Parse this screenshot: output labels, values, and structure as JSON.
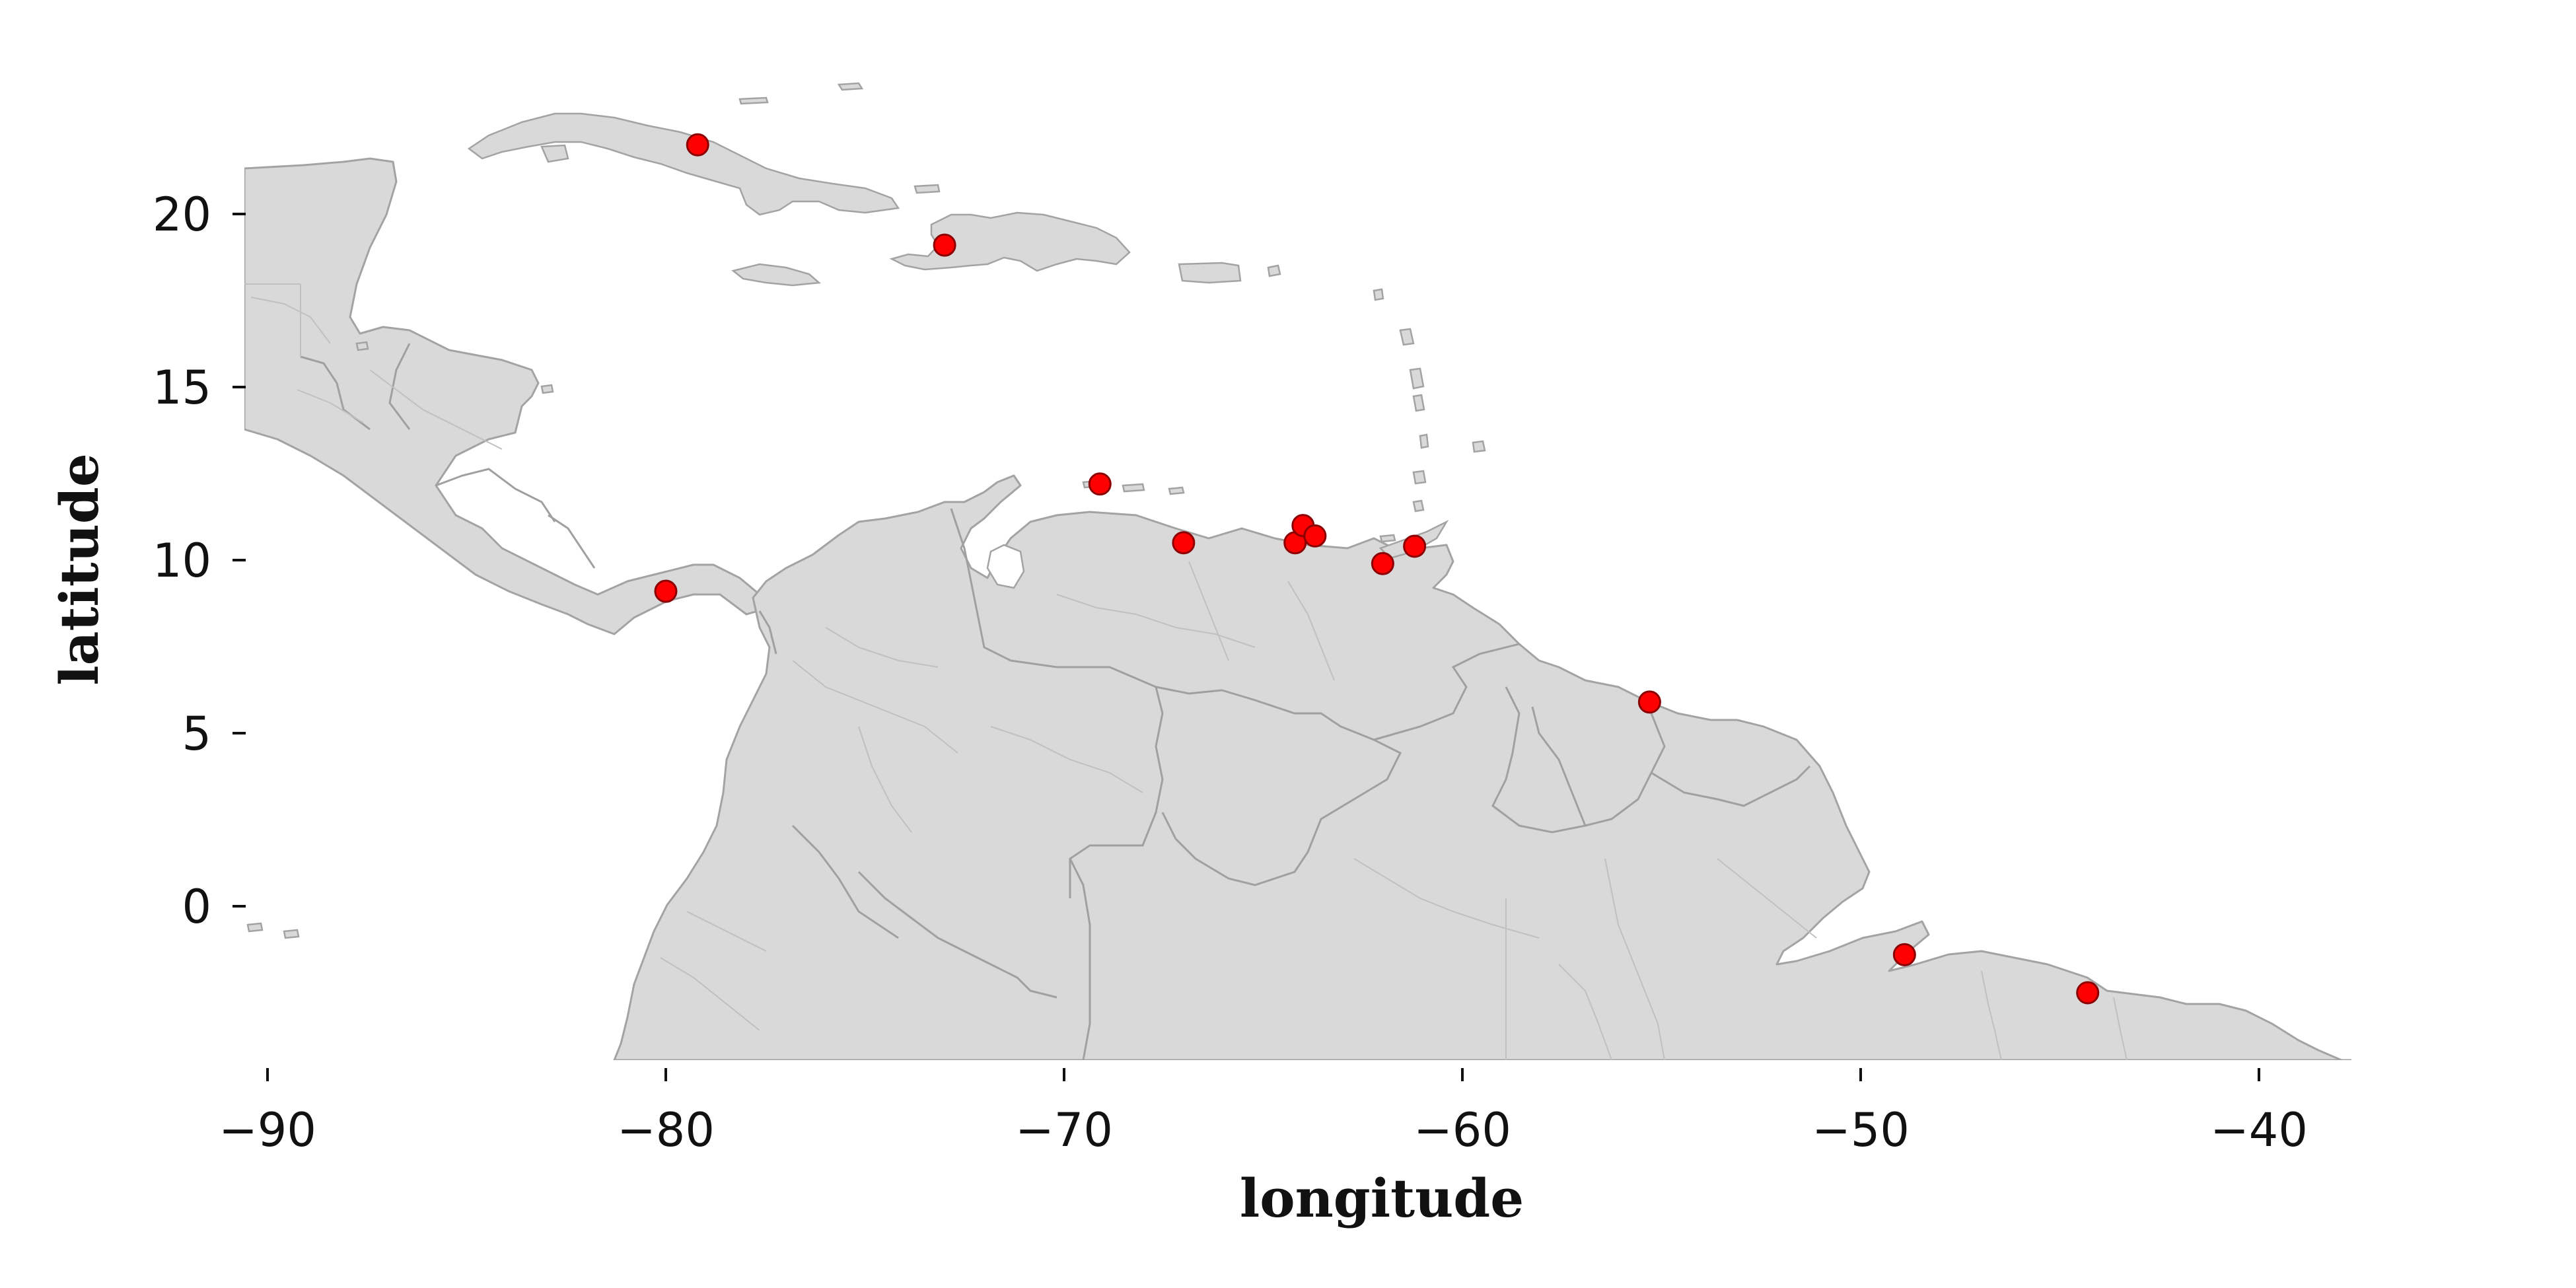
{
  "chart_data": {
    "type": "scatter",
    "xlabel": "longitude",
    "ylabel": "latitude",
    "xlim": [
      -90.5,
      -37.8
    ],
    "ylim": [
      -4.4,
      24.5
    ],
    "x_ticks": [
      -90,
      -80,
      -70,
      -60,
      -50,
      -40
    ],
    "y_ticks": [
      0,
      5,
      10,
      15,
      20
    ],
    "x_tick_labels": [
      "−90",
      "−80",
      "−70",
      "−60",
      "−50",
      "−40"
    ],
    "y_tick_labels": [
      "0",
      "5",
      "10",
      "15",
      "20"
    ],
    "grid": false,
    "marker_color": "#ff0000",
    "marker_edge_color": "#8b0000",
    "land_color": "#d9d9d9",
    "border_color": "#a3a3a3",
    "points": [
      {
        "lon": -79.2,
        "lat": 22.0
      },
      {
        "lon": -73.0,
        "lat": 19.1
      },
      {
        "lon": -69.1,
        "lat": 12.2
      },
      {
        "lon": -80.0,
        "lat": 9.1
      },
      {
        "lon": -67.0,
        "lat": 10.5
      },
      {
        "lon": -64.2,
        "lat": 10.5
      },
      {
        "lon": -64.0,
        "lat": 11.0
      },
      {
        "lon": -63.7,
        "lat": 10.7
      },
      {
        "lon": -62.0,
        "lat": 9.9
      },
      {
        "lon": -61.2,
        "lat": 10.4
      },
      {
        "lon": -55.3,
        "lat": 5.9
      },
      {
        "lon": -48.9,
        "lat": -1.4
      },
      {
        "lon": -44.3,
        "lat": -2.5
      }
    ]
  }
}
